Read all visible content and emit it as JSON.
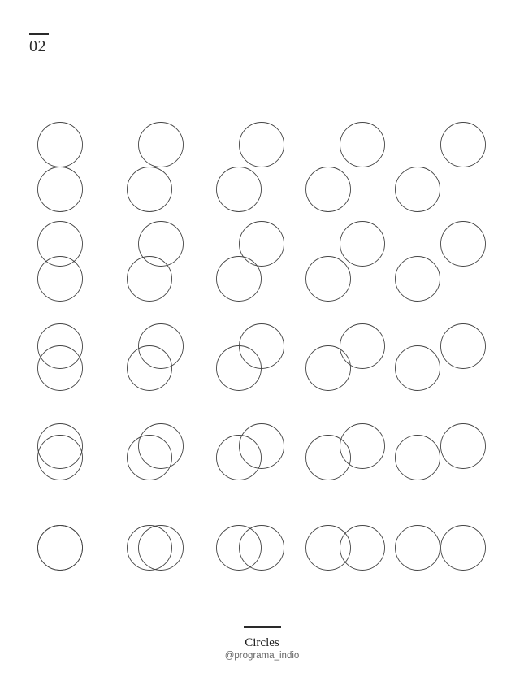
{
  "page_number": "02",
  "title": "Circles",
  "handle": "@programa_indio",
  "colors": {
    "stroke": "#444444",
    "bars": "#2a2a2a",
    "background": "#ffffff"
  },
  "artwork": {
    "rows": 5,
    "columns": 5,
    "circles_per_cell": 2
  }
}
